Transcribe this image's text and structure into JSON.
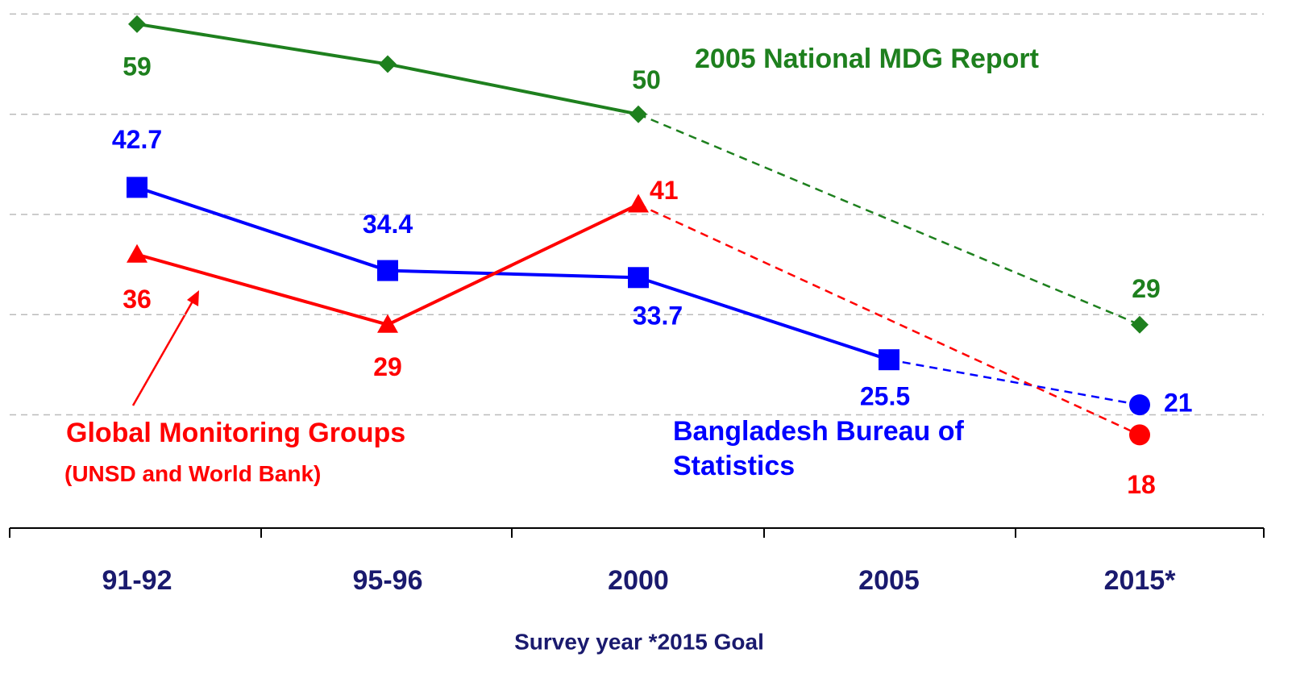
{
  "chart_data": {
    "type": "line",
    "categories": [
      "91-92",
      "95-96",
      "2000",
      "2005",
      "2015*"
    ],
    "x_label": "Survey year *2015 Goal",
    "ylim": [
      8.7,
      61.4
    ],
    "yticks": [
      20,
      30,
      40,
      50,
      60
    ],
    "grid": true,
    "series": [
      {
        "name": "2005 National MDG Report",
        "color": "#1e801e",
        "marker": "diamond",
        "values": [
          59,
          55,
          50,
          null,
          29
        ]
      },
      {
        "name": "Bangladesh Bureau of Statistics",
        "color": "#0000ff",
        "marker": "square",
        "values": [
          42.7,
          34.4,
          33.7,
          25.5,
          21
        ]
      },
      {
        "name": "Global Monitoring Groups",
        "color": "#ff0000",
        "marker": "triangle",
        "values": [
          36,
          29,
          41,
          null,
          18
        ]
      }
    ],
    "annotations": [
      "(UNSD and World Bank)"
    ]
  }
}
